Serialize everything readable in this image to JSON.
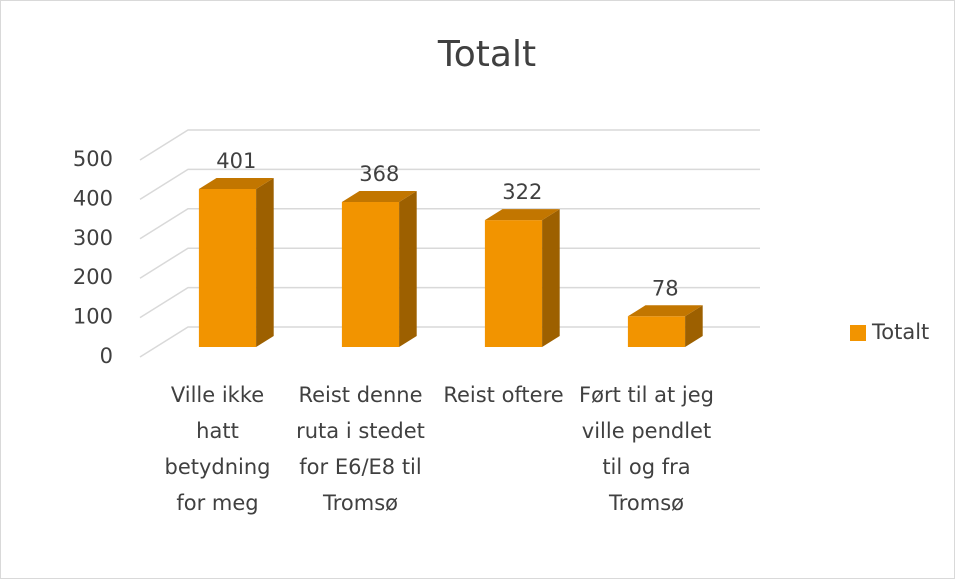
{
  "chart_data": {
    "type": "bar3d",
    "title": "Totalt",
    "categories": [
      "Ville ikke hatt betydning for meg",
      "Reist denne ruta i stedet for E6/E8 til Tromsø",
      "Reist oftere",
      "Ført til at jeg ville pendlet til og fra Tromsø"
    ],
    "series": [
      {
        "name": "Totalt",
        "color": "#f29400",
        "values": [
          401,
          368,
          322,
          78
        ]
      }
    ],
    "ylim": [
      0,
      500
    ],
    "yticks": [
      0,
      100,
      200,
      300,
      400,
      500
    ],
    "grid": true,
    "legend": "right"
  }
}
